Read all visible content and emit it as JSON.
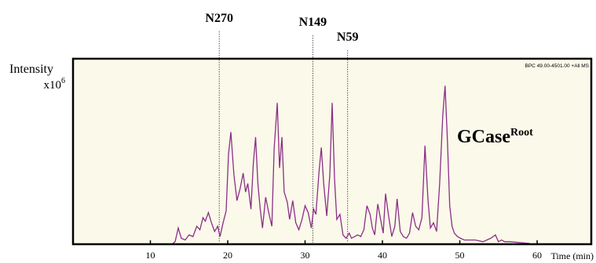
{
  "chart_data": {
    "type": "line",
    "ylabel": "Intensity",
    "ylabel_unit_base": "x10",
    "ylabel_unit_exp": "6",
    "xlabel": "Time (min)",
    "xlim": [
      0,
      67
    ],
    "ylim": [
      0,
      1
    ],
    "xticks": [
      10,
      20,
      30,
      40,
      50,
      60
    ],
    "header_note": "BPC 49.00-4501.00 +All MS",
    "sample_label_base": "GCase",
    "sample_label_sup": "Root",
    "line_color": "#8a2f86",
    "background_color": "#fbf9ea",
    "markers": [
      {
        "label": "N270",
        "x": 18.9
      },
      {
        "label": "N149",
        "x": 31.0
      },
      {
        "label": "N59",
        "x": 35.5
      }
    ],
    "x": [
      13.2,
      13.6,
      14.0,
      14.5,
      15.0,
      15.5,
      16.0,
      16.4,
      16.8,
      17.1,
      17.5,
      17.9,
      18.3,
      18.7,
      19.0,
      19.4,
      19.8,
      20.1,
      20.4,
      20.8,
      21.2,
      21.6,
      22.0,
      22.3,
      22.6,
      23.0,
      23.3,
      23.6,
      23.9,
      24.2,
      24.5,
      24.9,
      25.3,
      25.7,
      26.0,
      26.4,
      26.7,
      27.0,
      27.3,
      27.7,
      28.0,
      28.4,
      28.8,
      29.2,
      29.6,
      30.0,
      30.4,
      30.8,
      31.1,
      31.4,
      31.8,
      32.1,
      32.4,
      32.8,
      33.2,
      33.5,
      33.8,
      34.1,
      34.5,
      34.9,
      35.3,
      35.7,
      36.0,
      36.4,
      36.8,
      37.2,
      37.6,
      38.0,
      38.4,
      38.7,
      39.0,
      39.4,
      39.8,
      40.1,
      40.4,
      40.8,
      41.2,
      41.6,
      41.9,
      42.3,
      42.7,
      43.1,
      43.5,
      43.9,
      44.3,
      44.7,
      45.1,
      45.5,
      45.9,
      46.2,
      46.6,
      47.0,
      47.4,
      47.8,
      48.1,
      48.4,
      48.7,
      49.0,
      49.3,
      49.7,
      50.1,
      50.6,
      51.2,
      52.0,
      53.0,
      54.0,
      54.6,
      55.0,
      55.4,
      55.8,
      56.5
    ],
    "y": [
      0.01,
      0.09,
      0.03,
      0.02,
      0.05,
      0.04,
      0.1,
      0.08,
      0.15,
      0.13,
      0.18,
      0.12,
      0.07,
      0.1,
      0.04,
      0.12,
      0.19,
      0.52,
      0.65,
      0.4,
      0.25,
      0.32,
      0.41,
      0.3,
      0.35,
      0.2,
      0.46,
      0.62,
      0.35,
      0.2,
      0.09,
      0.27,
      0.18,
      0.1,
      0.55,
      0.82,
      0.44,
      0.62,
      0.3,
      0.24,
      0.14,
      0.25,
      0.12,
      0.08,
      0.14,
      0.22,
      0.18,
      0.09,
      0.2,
      0.17,
      0.42,
      0.56,
      0.35,
      0.16,
      0.4,
      0.82,
      0.38,
      0.14,
      0.17,
      0.05,
      0.03,
      0.06,
      0.03,
      0.04,
      0.05,
      0.04,
      0.08,
      0.22,
      0.17,
      0.09,
      0.05,
      0.23,
      0.13,
      0.06,
      0.29,
      0.16,
      0.04,
      0.1,
      0.26,
      0.07,
      0.04,
      0.03,
      0.06,
      0.18,
      0.1,
      0.08,
      0.15,
      0.57,
      0.25,
      0.09,
      0.12,
      0.07,
      0.35,
      0.75,
      0.92,
      0.6,
      0.22,
      0.1,
      0.06,
      0.04,
      0.03,
      0.02,
      0.02,
      0.02,
      0.01,
      0.03,
      0.05,
      0.01,
      0.02,
      0.01,
      0.01
    ]
  }
}
